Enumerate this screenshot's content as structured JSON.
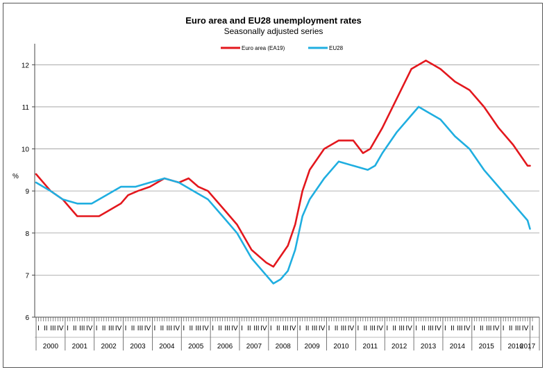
{
  "chart_data": {
    "type": "line",
    "title": "Euro area and EU28 unemployment rates",
    "subtitle": "Seasonally adjusted series",
    "ylabel": "%",
    "ylim": [
      6,
      12.5
    ],
    "yticks": [
      6,
      7,
      8,
      9,
      10,
      11,
      12
    ],
    "grid": "horizontal",
    "legend": "top-center",
    "start_year": 2000,
    "months": 205,
    "quarter_labels": [
      "I",
      "II",
      "III",
      "IV"
    ],
    "years": [
      "2000",
      "2001",
      "2002",
      "2003",
      "2004",
      "2005",
      "2006",
      "2007",
      "2008",
      "2009",
      "2010",
      "2011",
      "2012",
      "2013",
      "2014",
      "2015",
      "2016",
      "2017"
    ],
    "series": [
      {
        "name": "Euro area (EA19)",
        "color": "#e3171d",
        "points": [
          [
            "2000-01",
            9.4
          ],
          [
            "2000-07",
            9.0
          ],
          [
            "2000-12",
            8.8
          ],
          [
            "2001-03",
            8.6
          ],
          [
            "2001-06",
            8.4
          ],
          [
            "2002-03",
            8.4
          ],
          [
            "2002-06",
            8.5
          ],
          [
            "2002-12",
            8.7
          ],
          [
            "2003-03",
            8.9
          ],
          [
            "2003-07",
            9.0
          ],
          [
            "2003-12",
            9.1
          ],
          [
            "2004-06",
            9.3
          ],
          [
            "2004-12",
            9.2
          ],
          [
            "2005-04",
            9.3
          ],
          [
            "2005-08",
            9.1
          ],
          [
            "2005-12",
            9.0
          ],
          [
            "2006-06",
            8.6
          ],
          [
            "2006-12",
            8.2
          ],
          [
            "2007-06",
            7.6
          ],
          [
            "2007-12",
            7.3
          ],
          [
            "2008-03",
            7.2
          ],
          [
            "2008-09",
            7.7
          ],
          [
            "2008-12",
            8.2
          ],
          [
            "2009-03",
            9.0
          ],
          [
            "2009-06",
            9.5
          ],
          [
            "2009-12",
            10.0
          ],
          [
            "2010-06",
            10.2
          ],
          [
            "2010-12",
            10.2
          ],
          [
            "2011-04",
            9.9
          ],
          [
            "2011-07",
            10.0
          ],
          [
            "2011-12",
            10.5
          ],
          [
            "2012-06",
            11.2
          ],
          [
            "2012-12",
            11.9
          ],
          [
            "2013-06",
            12.1
          ],
          [
            "2013-09",
            12.0
          ],
          [
            "2013-12",
            11.9
          ],
          [
            "2014-06",
            11.6
          ],
          [
            "2014-12",
            11.4
          ],
          [
            "2015-06",
            11.0
          ],
          [
            "2015-12",
            10.5
          ],
          [
            "2016-06",
            10.1
          ],
          [
            "2016-12",
            9.6
          ],
          [
            "2017-01",
            9.6
          ]
        ]
      },
      {
        "name": "EU28",
        "color": "#1faee0",
        "points": [
          [
            "2000-01",
            9.2
          ],
          [
            "2000-07",
            9.0
          ],
          [
            "2000-12",
            8.8
          ],
          [
            "2001-06",
            8.7
          ],
          [
            "2001-12",
            8.7
          ],
          [
            "2002-06",
            8.9
          ],
          [
            "2002-12",
            9.1
          ],
          [
            "2003-06",
            9.1
          ],
          [
            "2003-12",
            9.2
          ],
          [
            "2004-06",
            9.3
          ],
          [
            "2004-12",
            9.2
          ],
          [
            "2005-06",
            9.0
          ],
          [
            "2005-12",
            8.8
          ],
          [
            "2006-06",
            8.4
          ],
          [
            "2006-12",
            8.0
          ],
          [
            "2007-06",
            7.4
          ],
          [
            "2007-12",
            7.0
          ],
          [
            "2008-03",
            6.8
          ],
          [
            "2008-06",
            6.9
          ],
          [
            "2008-09",
            7.1
          ],
          [
            "2008-12",
            7.6
          ],
          [
            "2009-03",
            8.4
          ],
          [
            "2009-06",
            8.8
          ],
          [
            "2009-12",
            9.3
          ],
          [
            "2010-06",
            9.7
          ],
          [
            "2010-12",
            9.6
          ],
          [
            "2011-06",
            9.5
          ],
          [
            "2011-09",
            9.6
          ],
          [
            "2011-12",
            9.9
          ],
          [
            "2012-06",
            10.4
          ],
          [
            "2012-12",
            10.8
          ],
          [
            "2013-03",
            11.0
          ],
          [
            "2013-06",
            10.9
          ],
          [
            "2013-12",
            10.7
          ],
          [
            "2014-06",
            10.3
          ],
          [
            "2014-12",
            10.0
          ],
          [
            "2015-06",
            9.5
          ],
          [
            "2015-12",
            9.1
          ],
          [
            "2016-06",
            8.7
          ],
          [
            "2016-12",
            8.3
          ],
          [
            "2017-01",
            8.1
          ]
        ]
      }
    ]
  }
}
